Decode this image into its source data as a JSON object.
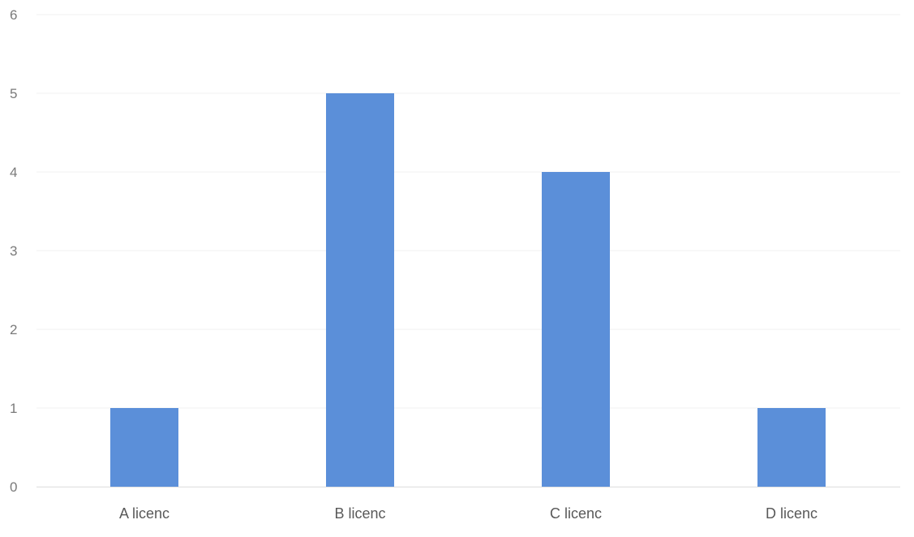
{
  "chart_data": {
    "type": "bar",
    "title": "",
    "xlabel": "",
    "ylabel": "",
    "categories": [
      "A licenc",
      "B licenc",
      "C licenc",
      "D licenc"
    ],
    "values": [
      1,
      5,
      4,
      1
    ],
    "ylim": [
      0,
      6
    ],
    "yticks": [
      "0",
      "1",
      "2",
      "3",
      "4",
      "5",
      "6"
    ],
    "grid": true,
    "legend": "none",
    "bar_color": "#5b8fd9",
    "grid_color": "#f0f0f0"
  }
}
